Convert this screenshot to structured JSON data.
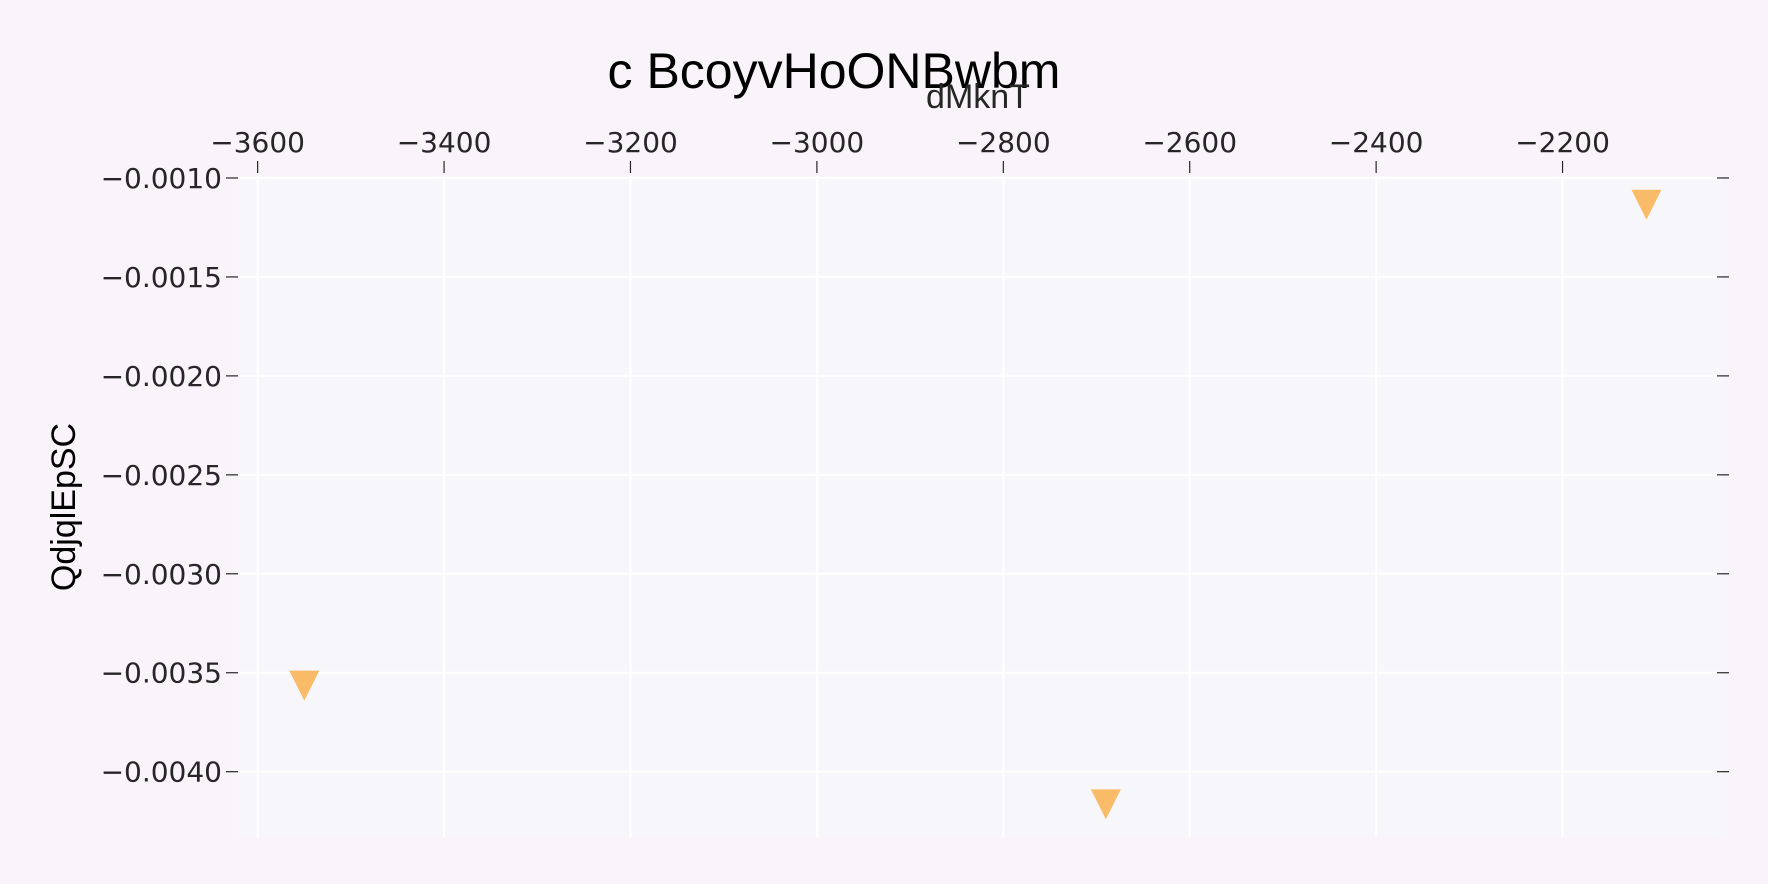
{
  "chart_data": {
    "type": "scatter",
    "title": "c  BcoyvHoONBwbm",
    "xlabel": "dMknT",
    "ylabel": "QdjqlEpSC",
    "x_axis_position": "top",
    "grid": true,
    "xlim": [
      -3620,
      -2030
    ],
    "ylim": [
      -0.00433,
      -0.00099
    ],
    "xticks": [
      -3600,
      -3400,
      -3200,
      -3000,
      -2800,
      -2600,
      -2400,
      -2200
    ],
    "xtick_labels": [
      "−3600",
      "−3400",
      "−3200",
      "−3000",
      "−2800",
      "−2600",
      "−2400",
      "−2200"
    ],
    "yticks": [
      -0.001,
      -0.0015,
      -0.002,
      -0.0025,
      -0.003,
      -0.0035,
      -0.004
    ],
    "ytick_labels": [
      "−0.0010",
      "−0.0015",
      "−0.0020",
      "−0.0025",
      "−0.0030",
      "−0.0035",
      "−0.0040"
    ],
    "marker": "triangle-down",
    "series": [
      {
        "color": "#f9bb67",
        "x": [
          -3550,
          -2690,
          -2110
        ],
        "y": [
          -0.00356,
          -0.00416,
          -0.00113
        ]
      }
    ],
    "colors": {
      "page_background": "#f9f4f9",
      "plot_background": "#f7f7fb",
      "grid": "#ffffff",
      "tick": "#262626"
    }
  }
}
